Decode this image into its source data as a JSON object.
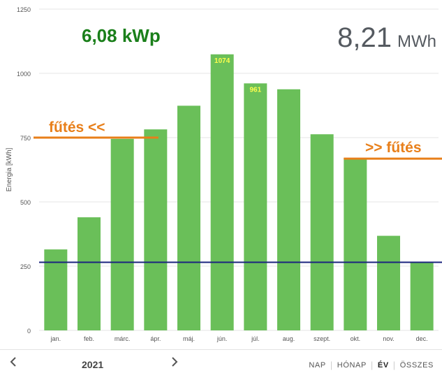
{
  "header": {
    "capacity": "6,08 kWp",
    "total_value": "8,21",
    "total_unit": "MWh"
  },
  "annotations": {
    "heating_left": "fűtés <<",
    "heating_right": ">> fűtés"
  },
  "footer": {
    "year": "2021",
    "views": [
      "NAP",
      "HÓNAP",
      "ÉV",
      "ÖSSZES"
    ],
    "active_view": "ÉV"
  },
  "colors": {
    "bar": "#6abf59",
    "grid": "#e6e6e6",
    "axis_text": "#555555",
    "reference_line": "#1a237e",
    "heating_line": "#e87f1a",
    "capacity_text": "#1a7f1a",
    "data_label": "#ffff4d"
  },
  "chart_data": {
    "type": "bar",
    "ylabel": "Energia [kWh]",
    "ylim": [
      0,
      1250
    ],
    "yticks": [
      0,
      250,
      500,
      750,
      1000,
      1250
    ],
    "grid": true,
    "categories": [
      "jan.",
      "feb.",
      "márc.",
      "ápr.",
      "máj.",
      "jún.",
      "júl.",
      "aug.",
      "szept.",
      "okt.",
      "nov.",
      "dec."
    ],
    "values": [
      315,
      440,
      745,
      782,
      874,
      1074,
      961,
      938,
      763,
      671,
      368,
      265
    ],
    "data_labels": [
      {
        "category": "jún.",
        "text": "1074"
      },
      {
        "category": "júl.",
        "text": "961"
      }
    ],
    "reference_line": 265,
    "heating_markers": [
      {
        "value": 750,
        "from": "jan.",
        "to": "ápr."
      },
      {
        "value": 668,
        "from": "okt.",
        "to": "dec."
      }
    ]
  }
}
